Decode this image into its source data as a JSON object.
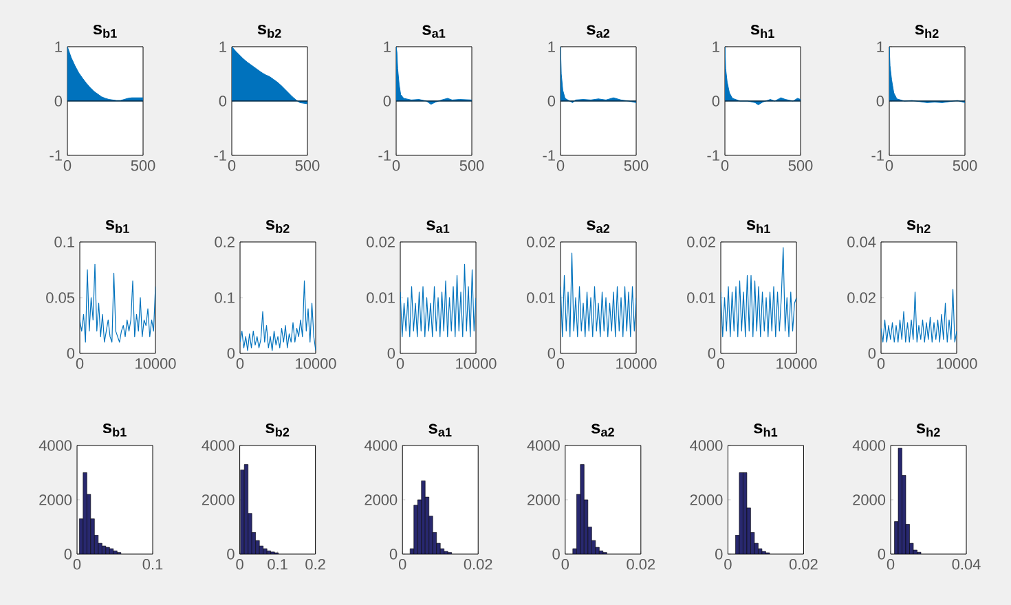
{
  "chart_data": [
    {
      "type": "area",
      "title": "s$_{b1}$",
      "color": "#0072bd",
      "x": [
        0,
        25,
        50,
        75,
        100,
        125,
        150,
        175,
        200,
        225,
        250,
        275,
        300,
        325,
        350,
        375,
        400,
        425,
        450,
        475,
        500
      ],
      "values": [
        1,
        0.8,
        0.65,
        0.52,
        0.42,
        0.33,
        0.25,
        0.18,
        0.13,
        0.08,
        0.05,
        0.03,
        0.02,
        0.01,
        0.01,
        0.03,
        0.05,
        0.06,
        0.06,
        0.06,
        0.06
      ],
      "xlim": [
        0,
        500
      ],
      "ylim": [
        -1,
        1
      ],
      "xticks": [
        0,
        500
      ],
      "yticks": [
        -1,
        0,
        1
      ],
      "ref_lines": [
        {
          "axis": "y",
          "value": 0,
          "color": "#000000"
        }
      ]
    },
    {
      "type": "area",
      "title": "s$_{b2}$",
      "color": "#0072bd",
      "x": [
        0,
        25,
        50,
        75,
        100,
        125,
        150,
        175,
        200,
        225,
        250,
        275,
        300,
        325,
        350,
        375,
        400,
        425,
        450,
        475,
        500
      ],
      "values": [
        1,
        0.92,
        0.85,
        0.78,
        0.72,
        0.67,
        0.62,
        0.57,
        0.52,
        0.48,
        0.45,
        0.4,
        0.35,
        0.29,
        0.22,
        0.15,
        0.08,
        0.02,
        -0.03,
        -0.04,
        -0.05
      ],
      "xlim": [
        0,
        500
      ],
      "ylim": [
        -1,
        1
      ],
      "xticks": [
        0,
        500
      ],
      "yticks": [
        -1,
        0,
        1
      ],
      "ref_lines": [
        {
          "axis": "y",
          "value": 0,
          "color": "#000000"
        }
      ]
    },
    {
      "type": "area",
      "title": "s$_{a1}$",
      "color": "#0072bd",
      "x": [
        0,
        5,
        10,
        20,
        30,
        50,
        100,
        150,
        200,
        230,
        260,
        300,
        340,
        370,
        420,
        500
      ],
      "values": [
        1,
        0.9,
        0.6,
        0.3,
        0.12,
        0.05,
        0.02,
        0.03,
        0.0,
        -0.06,
        -0.02,
        0.02,
        0.05,
        0.02,
        0.03,
        0.02
      ],
      "xlim": [
        0,
        500
      ],
      "ylim": [
        -1,
        1
      ],
      "xticks": [
        0,
        500
      ],
      "yticks": [
        -1,
        0,
        1
      ],
      "ref_lines": [
        {
          "axis": "y",
          "value": 0,
          "color": "#000000"
        }
      ]
    },
    {
      "type": "area",
      "title": "s$_{a2}$",
      "color": "#0072bd",
      "x": [
        0,
        5,
        15,
        30,
        60,
        80,
        100,
        150,
        200,
        250,
        300,
        350,
        400,
        450,
        500
      ],
      "values": [
        1,
        0.5,
        0.2,
        0.05,
        0.0,
        -0.03,
        0.02,
        0.03,
        0.02,
        0.04,
        0.02,
        0.06,
        0.02,
        0.0,
        -0.03
      ],
      "xlim": [
        0,
        500
      ],
      "ylim": [
        -1,
        1
      ],
      "xticks": [
        0,
        500
      ],
      "yticks": [
        -1,
        0,
        1
      ],
      "ref_lines": [
        {
          "axis": "y",
          "value": 0,
          "color": "#000000"
        }
      ]
    },
    {
      "type": "area",
      "title": "s$_{h1}$",
      "color": "#0072bd",
      "x": [
        0,
        5,
        15,
        30,
        50,
        100,
        150,
        200,
        220,
        250,
        300,
        330,
        370,
        400,
        450,
        480,
        500
      ],
      "values": [
        1,
        0.6,
        0.35,
        0.15,
        0.05,
        0.0,
        0.0,
        -0.03,
        -0.07,
        -0.02,
        0.03,
        0.0,
        0.06,
        0.03,
        0.0,
        0.05,
        0.03
      ],
      "xlim": [
        0,
        500
      ],
      "ylim": [
        -1,
        1
      ],
      "xticks": [
        0,
        500
      ],
      "yticks": [
        -1,
        0,
        1
      ],
      "ref_lines": [
        {
          "axis": "y",
          "value": 0,
          "color": "#000000"
        }
      ]
    },
    {
      "type": "area",
      "title": "s$_{h2}$",
      "color": "#0072bd",
      "x": [
        0,
        5,
        15,
        30,
        50,
        100,
        150,
        200,
        250,
        300,
        350,
        400,
        450,
        500
      ],
      "values": [
        1,
        0.65,
        0.4,
        0.15,
        0.04,
        0.0,
        0.01,
        -0.01,
        -0.03,
        -0.02,
        -0.03,
        -0.01,
        0.01,
        -0.03
      ],
      "xlim": [
        0,
        500
      ],
      "ylim": [
        -1,
        1
      ],
      "xticks": [
        0,
        500
      ],
      "yticks": [
        -1,
        0,
        1
      ],
      "ref_lines": [
        {
          "axis": "y",
          "value": 0,
          "color": "#000000"
        }
      ]
    },
    {
      "type": "line",
      "title": "s$_{b1}$",
      "color": "#0072bd",
      "x": [
        0,
        250,
        500,
        750,
        1000,
        1250,
        1500,
        1750,
        2000,
        2250,
        2500,
        2750,
        3000,
        3250,
        3500,
        3750,
        4000,
        4250,
        4500,
        4750,
        5000,
        5250,
        5500,
        5750,
        6000,
        6250,
        6500,
        6750,
        7000,
        7250,
        7500,
        7750,
        8000,
        8250,
        8500,
        8750,
        9000,
        9250,
        9500,
        9750,
        10000
      ],
      "values": [
        0.03,
        0.02,
        0.035,
        0.01,
        0.075,
        0.02,
        0.05,
        0.03,
        0.08,
        0.02,
        0.045,
        0.015,
        0.035,
        0.01,
        0.02,
        0.03,
        0.015,
        0.01,
        0.072,
        0.02,
        0.015,
        0.01,
        0.02,
        0.025,
        0.015,
        0.03,
        0.02,
        0.03,
        0.065,
        0.015,
        0.035,
        0.02,
        0.05,
        0.015,
        0.03,
        0.025,
        0.04,
        0.015,
        0.03,
        0.02,
        0.06
      ],
      "xlim": [
        0,
        10000
      ],
      "ylim": [
        0,
        0.1
      ],
      "xticks": [
        0,
        10000
      ],
      "yticks": [
        0,
        0.05,
        0.1
      ]
    },
    {
      "type": "line",
      "title": "s$_{b2}$",
      "color": "#0072bd",
      "x": [
        0,
        250,
        500,
        750,
        1000,
        1250,
        1500,
        1750,
        2000,
        2250,
        2500,
        2750,
        3000,
        3250,
        3500,
        3750,
        4000,
        4250,
        4500,
        4750,
        5000,
        5250,
        5500,
        5750,
        6000,
        6250,
        6500,
        6750,
        7000,
        7250,
        7500,
        7750,
        8000,
        8250,
        8500,
        8750,
        9000,
        9250,
        9500,
        9750,
        10000
      ],
      "values": [
        0.02,
        0.04,
        0.01,
        0.03,
        0.005,
        0.035,
        0.01,
        0.04,
        0.015,
        0.03,
        0.01,
        0.025,
        0.075,
        0.02,
        0.05,
        0.01,
        0.03,
        0.005,
        0.04,
        0.015,
        0.03,
        0.01,
        0.045,
        0.02,
        0.05,
        0.01,
        0.035,
        0.02,
        0.055,
        0.02,
        0.045,
        0.03,
        0.06,
        0.03,
        0.13,
        0.04,
        0.08,
        0.02,
        0.09,
        0.03,
        0.005
      ],
      "xlim": [
        0,
        10000
      ],
      "ylim": [
        0,
        0.2
      ],
      "xticks": [
        0,
        10000
      ],
      "yticks": [
        0,
        0.1,
        0.2
      ]
    },
    {
      "type": "line",
      "title": "s$_{a1}$",
      "color": "#0072bd",
      "x": [
        0,
        250,
        500,
        750,
        1000,
        1250,
        1500,
        1750,
        2000,
        2250,
        2500,
        2750,
        3000,
        3250,
        3500,
        3750,
        4000,
        4250,
        4500,
        4750,
        5000,
        5250,
        5500,
        5750,
        6000,
        6250,
        6500,
        6750,
        7000,
        7250,
        7500,
        7750,
        8000,
        8250,
        8500,
        8750,
        9000,
        9250,
        9500,
        9750,
        10000
      ],
      "values": [
        0.011,
        0.003,
        0.009,
        0.004,
        0.01,
        0.003,
        0.012,
        0.004,
        0.009,
        0.003,
        0.011,
        0.004,
        0.012,
        0.003,
        0.01,
        0.004,
        0.009,
        0.003,
        0.012,
        0.004,
        0.01,
        0.003,
        0.011,
        0.004,
        0.013,
        0.003,
        0.01,
        0.004,
        0.012,
        0.003,
        0.014,
        0.004,
        0.011,
        0.003,
        0.016,
        0.004,
        0.012,
        0.003,
        0.015,
        0.004,
        0.01
      ],
      "xlim": [
        0,
        10000
      ],
      "ylim": [
        0,
        0.02
      ],
      "xticks": [
        0,
        10000
      ],
      "yticks": [
        0,
        0.01,
        0.02
      ]
    },
    {
      "type": "line",
      "title": "s$_{a2}$",
      "color": "#0072bd",
      "x": [
        0,
        250,
        500,
        750,
        1000,
        1250,
        1500,
        1750,
        2000,
        2250,
        2500,
        2750,
        3000,
        3250,
        3500,
        3750,
        4000,
        4250,
        4500,
        4750,
        5000,
        5250,
        5500,
        5750,
        6000,
        6250,
        6500,
        6750,
        7000,
        7250,
        7500,
        7750,
        8000,
        8250,
        8500,
        8750,
        9000,
        9250,
        9500,
        9750,
        10000
      ],
      "values": [
        0.012,
        0.003,
        0.014,
        0.004,
        0.011,
        0.003,
        0.018,
        0.004,
        0.01,
        0.003,
        0.012,
        0.004,
        0.009,
        0.003,
        0.011,
        0.004,
        0.01,
        0.003,
        0.012,
        0.004,
        0.009,
        0.003,
        0.011,
        0.004,
        0.01,
        0.003,
        0.009,
        0.004,
        0.011,
        0.003,
        0.012,
        0.004,
        0.01,
        0.003,
        0.012,
        0.004,
        0.011,
        0.003,
        0.012,
        0.004,
        0.01
      ],
      "xlim": [
        0,
        10000
      ],
      "ylim": [
        0,
        0.02
      ],
      "xticks": [
        0,
        10000
      ],
      "yticks": [
        0,
        0.01,
        0.02
      ]
    },
    {
      "type": "line",
      "title": "s$_{h1}$",
      "color": "#0072bd",
      "x": [
        0,
        250,
        500,
        750,
        1000,
        1250,
        1500,
        1750,
        2000,
        2250,
        2500,
        2750,
        3000,
        3250,
        3500,
        3750,
        4000,
        4250,
        4500,
        4750,
        5000,
        5250,
        5500,
        5750,
        6000,
        6250,
        6500,
        6750,
        7000,
        7250,
        7500,
        7750,
        8000,
        8250,
        8500,
        8750,
        9000,
        9250,
        9500,
        9750,
        10000
      ],
      "values": [
        0.011,
        0.003,
        0.01,
        0.004,
        0.012,
        0.003,
        0.011,
        0.004,
        0.012,
        0.003,
        0.013,
        0.004,
        0.011,
        0.003,
        0.014,
        0.004,
        0.014,
        0.003,
        0.013,
        0.004,
        0.012,
        0.003,
        0.011,
        0.004,
        0.01,
        0.003,
        0.011,
        0.004,
        0.012,
        0.003,
        0.011,
        0.004,
        0.01,
        0.019,
        0.004,
        0.01,
        0.003,
        0.011,
        0.004,
        0.009,
        0.01
      ],
      "xlim": [
        0,
        10000
      ],
      "ylim": [
        0,
        0.02
      ],
      "xticks": [
        0,
        10000
      ],
      "yticks": [
        0,
        0.01,
        0.02
      ]
    },
    {
      "type": "line",
      "title": "s$_{h2}$",
      "color": "#0072bd",
      "x": [
        0,
        250,
        500,
        750,
        1000,
        1250,
        1500,
        1750,
        2000,
        2250,
        2500,
        2750,
        3000,
        3250,
        3500,
        3750,
        4000,
        4250,
        4500,
        4750,
        5000,
        5250,
        5500,
        5750,
        6000,
        6250,
        6500,
        6750,
        7000,
        7250,
        7500,
        7750,
        8000,
        8250,
        8500,
        8750,
        9000,
        9250,
        9500,
        9750,
        10000
      ],
      "values": [
        0.009,
        0.004,
        0.012,
        0.004,
        0.01,
        0.005,
        0.011,
        0.004,
        0.01,
        0.004,
        0.012,
        0.005,
        0.015,
        0.004,
        0.011,
        0.004,
        0.012,
        0.005,
        0.022,
        0.004,
        0.01,
        0.005,
        0.012,
        0.004,
        0.011,
        0.005,
        0.013,
        0.004,
        0.011,
        0.005,
        0.012,
        0.004,
        0.014,
        0.005,
        0.018,
        0.004,
        0.012,
        0.005,
        0.023,
        0.004,
        0.008
      ],
      "xlim": [
        0,
        10000
      ],
      "ylim": [
        0,
        0.04
      ],
      "xticks": [
        0,
        10000
      ],
      "yticks": [
        0,
        0.02,
        0.04
      ]
    },
    {
      "type": "histogram",
      "title": "s$_{b1}$",
      "color": "#28286e",
      "bins": [
        0.003,
        0.008,
        0.013,
        0.018,
        0.023,
        0.028,
        0.033,
        0.038,
        0.043,
        0.048,
        0.053,
        0.058
      ],
      "values": [
        1300,
        3000,
        2200,
        1300,
        700,
        400,
        300,
        250,
        200,
        120,
        60
      ],
      "xlim": [
        0,
        0.1
      ],
      "ylim": [
        0,
        4000
      ],
      "xticks": [
        0,
        0.1
      ],
      "yticks": [
        0,
        2000,
        4000
      ]
    },
    {
      "type": "histogram",
      "title": "s$_{b2}$",
      "color": "#28286e",
      "bins": [
        0.002,
        0.012,
        0.022,
        0.032,
        0.042,
        0.052,
        0.062,
        0.072,
        0.082,
        0.092,
        0.102
      ],
      "values": [
        3100,
        3300,
        1500,
        800,
        500,
        300,
        200,
        120,
        80,
        50
      ],
      "xlim": [
        0,
        0.2
      ],
      "ylim": [
        0,
        4000
      ],
      "xticks": [
        0,
        0.1,
        0.2
      ],
      "yticks": [
        0,
        2000,
        4000
      ]
    },
    {
      "type": "histogram",
      "title": "s$_{a1}$",
      "color": "#28286e",
      "bins": [
        0.002,
        0.003,
        0.004,
        0.005,
        0.006,
        0.007,
        0.008,
        0.009,
        0.01,
        0.011,
        0.012,
        0.013
      ],
      "values": [
        200,
        1800,
        2000,
        2700,
        2100,
        1400,
        800,
        400,
        200,
        100,
        60
      ],
      "xlim": [
        0,
        0.02
      ],
      "ylim": [
        0,
        4000
      ],
      "xticks": [
        0,
        0.02
      ],
      "yticks": [
        0,
        2000,
        4000
      ]
    },
    {
      "type": "histogram",
      "title": "s$_{a2}$",
      "color": "#28286e",
      "bins": [
        0.002,
        0.003,
        0.004,
        0.005,
        0.006,
        0.007,
        0.008,
        0.009,
        0.01,
        0.011
      ],
      "values": [
        200,
        2200,
        3300,
        2000,
        1000,
        500,
        250,
        120,
        60
      ],
      "xlim": [
        0,
        0.02
      ],
      "ylim": [
        0,
        4000
      ],
      "xticks": [
        0,
        0.02
      ],
      "yticks": [
        0,
        2000,
        4000
      ]
    },
    {
      "type": "histogram",
      "title": "s$_{h1}$",
      "color": "#28286e",
      "bins": [
        0.002,
        0.003,
        0.004,
        0.005,
        0.006,
        0.007,
        0.008,
        0.009,
        0.01,
        0.011
      ],
      "values": [
        700,
        3000,
        3000,
        1700,
        800,
        400,
        200,
        100,
        50
      ],
      "xlim": [
        0,
        0.02
      ],
      "ylim": [
        0,
        4000
      ],
      "xticks": [
        0,
        0.02
      ],
      "yticks": [
        0,
        2000,
        4000
      ]
    },
    {
      "type": "histogram",
      "title": "s$_{h2}$",
      "color": "#28286e",
      "bins": [
        0.002,
        0.004,
        0.006,
        0.008,
        0.01,
        0.012,
        0.014,
        0.016
      ],
      "values": [
        1200,
        3900,
        2900,
        1100,
        400,
        150,
        70
      ],
      "xlim": [
        0,
        0.04
      ],
      "ylim": [
        0,
        4000
      ],
      "xticks": [
        0,
        0.04
      ],
      "yticks": [
        0,
        2000,
        4000
      ]
    }
  ]
}
